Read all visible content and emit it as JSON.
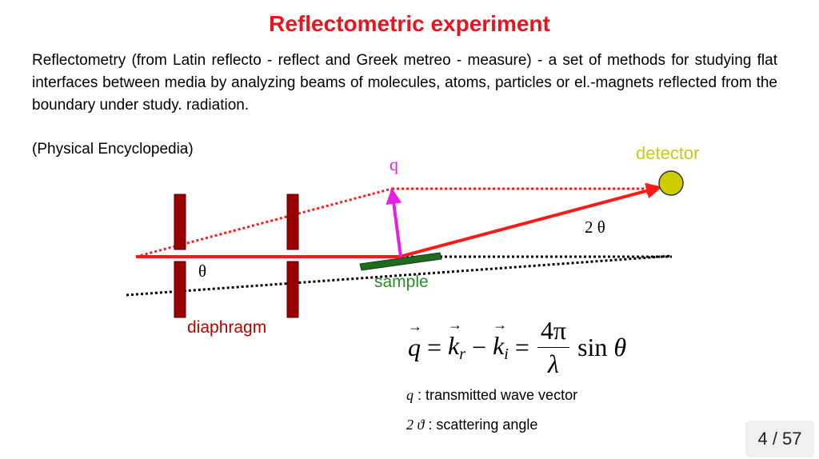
{
  "slide": {
    "title": "Reflectometric experiment",
    "paragraph": "Reflectometry (from Latin reflecto - reflect and Greek metreo - measure) - a set of methods for studying flat interfaces between media by analyzing beams of molecules, atoms, particles or el.-magnets reflected from the boundary under study. radiation.",
    "source": "(Physical Encyclopedia)"
  },
  "diagram": {
    "labels": {
      "detector": "detector",
      "q": "q",
      "two_theta": "2 θ",
      "theta": "θ",
      "sample": "sample",
      "diaphragm": "diaphragm"
    },
    "colors": {
      "beam": "#ff1a1a",
      "q_vector": "#e61ee6",
      "sample": "#1f6b1f",
      "diaphragm": "#990000",
      "detector_fill": "#cccc00",
      "dotted_reference": "#000000"
    }
  },
  "formula": {
    "q": "q",
    "equals": "=",
    "k": "k",
    "sub_r": "r",
    "minus": "−",
    "sub_i": "i",
    "numerator": "4π",
    "denominator": "λ",
    "sin": "sin",
    "theta": "θ"
  },
  "legend": {
    "q_symbol": "q",
    "q_text": " : transmitted wave vector",
    "angle_symbol": "2 ϑ",
    "angle_text": " : scattering angle"
  },
  "pagination": {
    "current": "4",
    "separator": " / ",
    "total": "57"
  }
}
